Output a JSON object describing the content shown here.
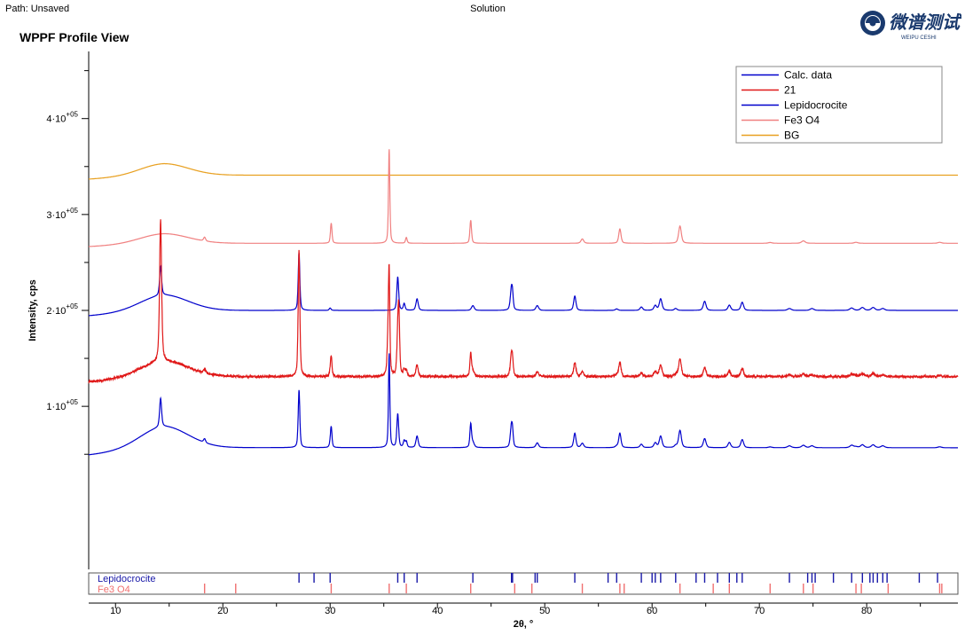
{
  "header": {
    "path_label": "Path: Unsaved",
    "center_label": "Solution",
    "view_title": "WPPF Profile View",
    "logo_text": "微谱测试",
    "logo_subtext": "WEIPU CESHI"
  },
  "chart_data": {
    "type": "line",
    "title": "WPPF Profile View",
    "xlabel": "2θ, °",
    "ylabel": "Intensity, cps",
    "xlim": [
      7.5,
      88.5
    ],
    "ylim": [
      -70000,
      470000
    ],
    "x_ticks": [
      10,
      20,
      30,
      40,
      50,
      60,
      70,
      80
    ],
    "x_tick_labels": [
      "10",
      "20",
      "30",
      "40",
      "50",
      "60",
      "70",
      "80"
    ],
    "y_ticks": [
      100000,
      200000,
      300000,
      400000
    ],
    "y_tick_labels": [
      {
        "base": "1·10",
        "exp": "+05"
      },
      {
        "base": "2·10",
        "exp": "+05"
      },
      {
        "base": "3·10",
        "exp": "+05"
      },
      {
        "base": "4·10",
        "exp": "+05"
      }
    ],
    "y_minor_ticks": [
      50000,
      150000,
      250000,
      350000,
      450000
    ],
    "legend": {
      "position": "top-right",
      "entries": [
        {
          "label": "Calc. data",
          "color": "#0000cc"
        },
        {
          "label": "21",
          "color": "#e01818"
        },
        {
          "label": "Lepidocrocite",
          "color": "#0000cc"
        },
        {
          "label": "Fe3 O4",
          "color": "#f08080"
        },
        {
          "label": "BG",
          "color": "#e8a020"
        }
      ]
    },
    "peak_profiles": {
      "lepidocrocite": [
        [
          14.2,
          30000,
          0.22
        ],
        [
          27.1,
          60000,
          0.18
        ],
        [
          30.0,
          2500,
          0.2
        ],
        [
          36.3,
          35000,
          0.2
        ],
        [
          36.9,
          7000,
          0.2
        ],
        [
          38.1,
          12000,
          0.25
        ],
        [
          43.3,
          5000,
          0.3
        ],
        [
          46.9,
          24000,
          0.25
        ],
        [
          47.0,
          8000,
          0.15
        ],
        [
          49.3,
          5000,
          0.3
        ],
        [
          52.8,
          15000,
          0.25
        ],
        [
          56.7,
          1500,
          0.3
        ],
        [
          59.0,
          3500,
          0.3
        ],
        [
          60.3,
          5000,
          0.3
        ],
        [
          60.8,
          12000,
          0.3
        ],
        [
          62.2,
          2000,
          0.3
        ],
        [
          64.9,
          9500,
          0.3
        ],
        [
          67.2,
          5500,
          0.3
        ],
        [
          68.4,
          8500,
          0.3
        ],
        [
          72.8,
          2000,
          0.4
        ],
        [
          74.9,
          2000,
          0.4
        ],
        [
          78.6,
          2500,
          0.4
        ],
        [
          79.6,
          3000,
          0.4
        ],
        [
          80.6,
          3000,
          0.4
        ],
        [
          81.5,
          2000,
          0.4
        ]
      ],
      "fe3o4": [
        [
          18.3,
          4000,
          0.22
        ],
        [
          30.1,
          21000,
          0.17
        ],
        [
          35.5,
          98000,
          0.15
        ],
        [
          37.1,
          6000,
          0.18
        ],
        [
          43.1,
          24000,
          0.18
        ],
        [
          53.5,
          4500,
          0.3
        ],
        [
          57.0,
          15000,
          0.25
        ],
        [
          62.6,
          18000,
          0.3
        ],
        [
          71.0,
          800,
          0.4
        ],
        [
          74.1,
          2500,
          0.4
        ],
        [
          79.0,
          1000,
          0.4
        ],
        [
          86.8,
          1000,
          0.4
        ]
      ]
    },
    "series": [
      {
        "name": "Calc. data",
        "color": "#0000cc",
        "offset": 0,
        "bg_base": 57000,
        "bg_bump": 22000,
        "bg_slope": 130,
        "components": [
          "lepidocrocite",
          "fe3o4"
        ]
      },
      {
        "name": "21",
        "color": "#e01818",
        "offset": 0,
        "bg_base": 131000,
        "bg_bump": 16000,
        "bg_slope": 0,
        "noise": 2200,
        "extra_peaks": [
          [
            14.2,
            118000,
            0.22
          ],
          [
            27.1,
            72000,
            0.18
          ],
          [
            35.4,
            36000,
            0.2
          ],
          [
            36.4,
            60000,
            0.18
          ]
        ],
        "components": [
          "lepidocrocite",
          "fe3o4"
        ]
      },
      {
        "name": "Lepidocrocite",
        "color": "#0000cc",
        "bg_base": 200000,
        "bg_bump": 16000,
        "bg_slope": 0,
        "components": [
          "lepidocrocite"
        ]
      },
      {
        "name": "Fe3 O4",
        "color": "#f08080",
        "bg_base": 270000,
        "bg_bump": 10000,
        "bg_slope": 0,
        "components": [
          "fe3o4"
        ]
      },
      {
        "name": "BG",
        "color": "#e8a020",
        "bg_base": 341000,
        "bg_bump": 12000,
        "bg_slope": 0,
        "components": []
      }
    ],
    "phase_markers": [
      {
        "name": "Lepidocrocite",
        "color": "#1818a8",
        "positions": [
          27.1,
          28.5,
          30.0,
          36.3,
          36.9,
          38.1,
          43.3,
          46.9,
          47.0,
          49.1,
          49.3,
          52.8,
          55.9,
          56.7,
          59.0,
          60.0,
          60.3,
          60.8,
          62.2,
          64.1,
          64.9,
          66.1,
          67.2,
          67.9,
          68.4,
          72.8,
          74.5,
          74.9,
          75.2,
          76.9,
          78.6,
          79.6,
          80.3,
          80.6,
          81.0,
          81.5,
          81.9,
          84.9,
          86.6
        ]
      },
      {
        "name": "Fe3 O4",
        "color": "#f07070",
        "positions": [
          18.3,
          21.2,
          30.1,
          35.5,
          37.1,
          43.1,
          47.2,
          48.8,
          53.5,
          57.0,
          57.4,
          62.6,
          65.7,
          67.2,
          71.0,
          74.1,
          75.0,
          79.0,
          79.5,
          82.0,
          86.8,
          87.0
        ]
      }
    ]
  }
}
